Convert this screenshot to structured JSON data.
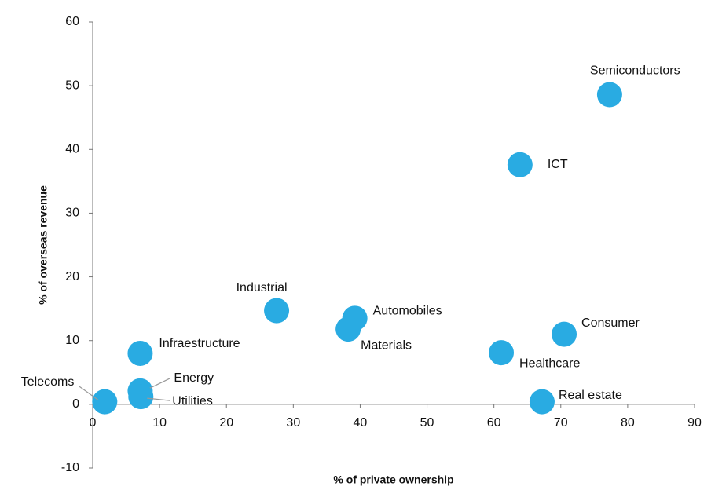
{
  "chart_data": {
    "type": "scatter",
    "labels": [
      "Semiconductors",
      "ICT",
      "Industrial",
      "Automobiles",
      "Materials",
      "Consumer",
      "Healthcare",
      "Infraestructure",
      "Energy",
      "Utilities",
      "Telecoms",
      "Real estate"
    ],
    "x": [
      77.3,
      63.9,
      27.5,
      39.2,
      38.2,
      70.5,
      61.1,
      7.1,
      7.1,
      7.2,
      1.8,
      67.2
    ],
    "values": [
      48.6,
      37.6,
      14.7,
      13.5,
      11.8,
      11.0,
      8.1,
      8.0,
      2.1,
      1.2,
      0.4,
      0.4
    ],
    "color": "#29abe2",
    "xlim": [
      0,
      90
    ],
    "xticks": [
      0,
      10,
      20,
      30,
      40,
      50,
      60,
      70,
      80,
      90
    ],
    "ylim": [
      -10,
      60
    ],
    "yticks": [
      -10,
      0,
      10,
      20,
      30,
      40,
      50,
      60
    ],
    "xlabel": "% of private ownership",
    "ylabel": "% of overseas revenue"
  }
}
